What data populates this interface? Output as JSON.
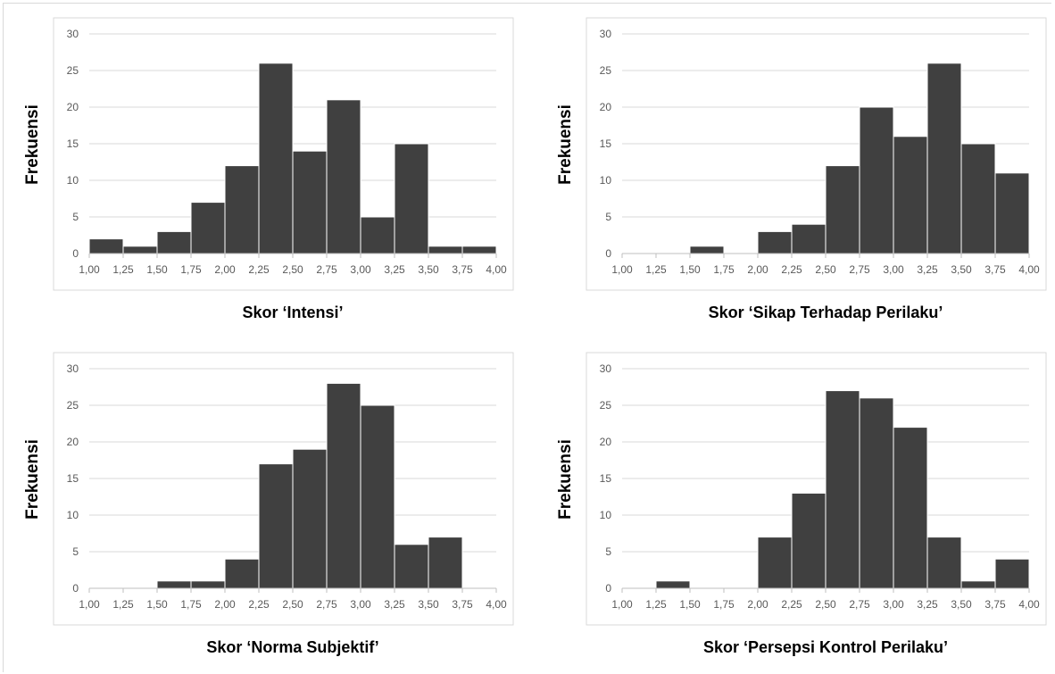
{
  "chart_data": [
    {
      "type": "bar",
      "xlabel": "Skor ‘Intensi’",
      "ylabel": "Frekuensi",
      "x_ticks": [
        "1,00",
        "1,25",
        "1,50",
        "1,75",
        "2,00",
        "2,25",
        "2,50",
        "2,75",
        "3,00",
        "3,25",
        "3,50",
        "3,75",
        "4,00"
      ],
      "y_ticks": [
        "0",
        "5",
        "10",
        "15",
        "20",
        "25",
        "30"
      ],
      "ylim": [
        0,
        30
      ],
      "bins": [
        "1,00-1,25",
        "1,25-1,50",
        "1,50-1,75",
        "1,75-2,00",
        "2,00-2,25",
        "2,25-2,50",
        "2,50-2,75",
        "2,75-3,00",
        "3,00-3,25",
        "3,25-3,50",
        "3,50-3,75",
        "3,75-4,00"
      ],
      "values": [
        2,
        1,
        3,
        7,
        12,
        26,
        14,
        21,
        5,
        15,
        1,
        1
      ],
      "grid": "horizontal",
      "bar_color": "#404040"
    },
    {
      "type": "bar",
      "xlabel": "Skor ‘Sikap Terhadap Perilaku’",
      "ylabel": "Frekuensi",
      "x_ticks": [
        "1,00",
        "1,25",
        "1,50",
        "1,75",
        "2,00",
        "2,25",
        "2,50",
        "2,75",
        "3,00",
        "3,25",
        "3,50",
        "3,75",
        "4,00"
      ],
      "y_ticks": [
        "0",
        "5",
        "10",
        "15",
        "20",
        "25",
        "30"
      ],
      "ylim": [
        0,
        30
      ],
      "bins": [
        "1,00-1,25",
        "1,25-1,50",
        "1,50-1,75",
        "1,75-2,00",
        "2,00-2,25",
        "2,25-2,50",
        "2,50-2,75",
        "2,75-3,00",
        "3,00-3,25",
        "3,25-3,50",
        "3,50-3,75",
        "3,75-4,00"
      ],
      "values": [
        0,
        0,
        1,
        0,
        3,
        4,
        12,
        20,
        16,
        26,
        15,
        11
      ],
      "grid": "horizontal",
      "bar_color": "#404040"
    },
    {
      "type": "bar",
      "xlabel": "Skor ‘Norma Subjektif’",
      "ylabel": "Frekuensi",
      "x_ticks": [
        "1,00",
        "1,25",
        "1,50",
        "1,75",
        "2,00",
        "2,25",
        "2,50",
        "2,75",
        "3,00",
        "3,25",
        "3,50",
        "3,75",
        "4,00"
      ],
      "y_ticks": [
        "0",
        "5",
        "10",
        "15",
        "20",
        "25",
        "30"
      ],
      "ylim": [
        0,
        30
      ],
      "bins": [
        "1,00-1,25",
        "1,25-1,50",
        "1,50-1,75",
        "1,75-2,00",
        "2,00-2,25",
        "2,25-2,50",
        "2,50-2,75",
        "2,75-3,00",
        "3,00-3,25",
        "3,25-3,50",
        "3,50-3,75",
        "3,75-4,00"
      ],
      "values": [
        0,
        0,
        1,
        1,
        4,
        17,
        19,
        28,
        25,
        6,
        7,
        0
      ],
      "grid": "horizontal",
      "bar_color": "#404040"
    },
    {
      "type": "bar",
      "xlabel": "Skor ‘Persepsi Kontrol Perilaku’",
      "ylabel": "Frekuensi",
      "x_ticks": [
        "1,00",
        "1,25",
        "1,50",
        "1,75",
        "2,00",
        "2,25",
        "2,50",
        "2,75",
        "3,00",
        "3,25",
        "3,50",
        "3,75",
        "4,00"
      ],
      "y_ticks": [
        "0",
        "5",
        "10",
        "15",
        "20",
        "25",
        "30"
      ],
      "ylim": [
        0,
        30
      ],
      "bins": [
        "1,00-1,25",
        "1,25-1,50",
        "1,50-1,75",
        "1,75-2,00",
        "2,00-2,25",
        "2,25-2,50",
        "2,50-2,75",
        "2,75-3,00",
        "3,00-3,25",
        "3,25-3,50",
        "3,50-3,75",
        "3,75-4,00"
      ],
      "values": [
        0,
        1,
        0,
        0,
        7,
        13,
        27,
        26,
        22,
        7,
        1,
        4
      ],
      "grid": "horizontal",
      "bar_color": "#404040"
    }
  ]
}
